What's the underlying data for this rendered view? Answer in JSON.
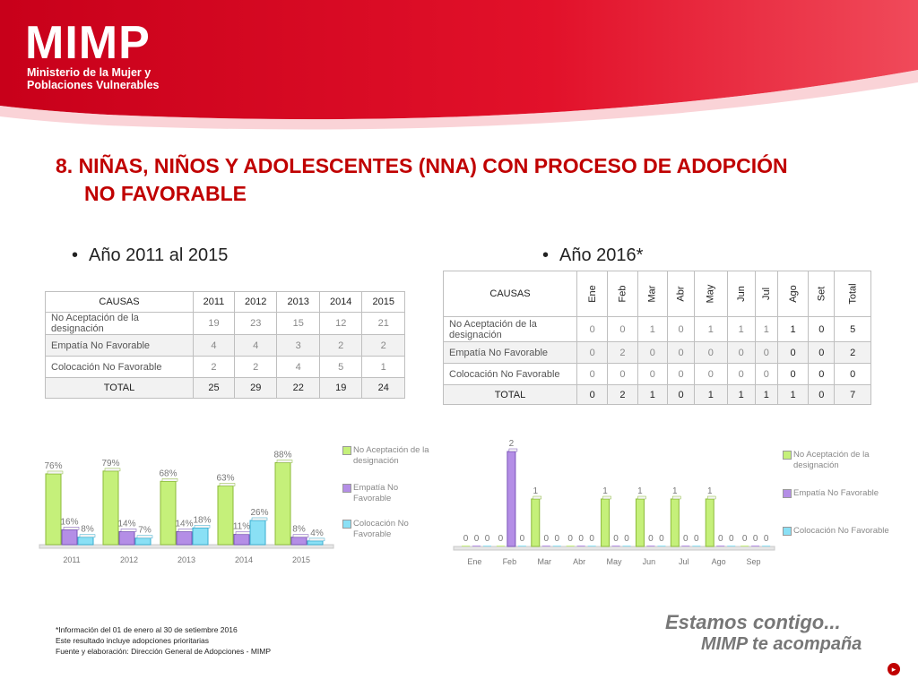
{
  "colors": {
    "red": "#d0021b",
    "title": "#c00000",
    "green": "#c5f07a",
    "purple": "#b48ee6",
    "cyan": "#8ae0f5"
  },
  "logo": {
    "name": "MIMP",
    "line1": "Ministerio de la Mujer y",
    "line2": "Poblaciones Vulnerables"
  },
  "title": {
    "line1": "8. NIÑAS, NIÑOS Y ADOLESCENTES (NNA) CON PROCESO DE ADOPCIÓN",
    "line2": "NO FAVORABLE"
  },
  "left": {
    "bullet": "Año 2011 al 2015",
    "table": {
      "headers": [
        "CAUSAS",
        "2011",
        "2012",
        "2013",
        "2014",
        "2015"
      ],
      "rows": [
        [
          "No Aceptación de la designación",
          "19",
          "23",
          "15",
          "12",
          "21"
        ],
        [
          "Empatía No Favorable",
          "4",
          "4",
          "3",
          "2",
          "2"
        ],
        [
          "Colocación No Favorable",
          "2",
          "2",
          "4",
          "5",
          "1"
        ]
      ],
      "total": [
        "TOTAL",
        "25",
        "29",
        "22",
        "19",
        "24"
      ]
    }
  },
  "right": {
    "bullet": "Año 2016*",
    "table": {
      "headers": [
        "CAUSAS",
        "Ene",
        "Feb",
        "Mar",
        "Abr",
        "May",
        "Jun",
        "Jul",
        "Ago",
        "Set",
        "Total"
      ],
      "rows": [
        [
          "No Aceptación de la designación",
          "0",
          "0",
          "1",
          "0",
          "1",
          "1",
          "1",
          "1",
          "0",
          "5"
        ],
        [
          "Empatía No Favorable",
          "0",
          "2",
          "0",
          "0",
          "0",
          "0",
          "0",
          "0",
          "0",
          "2"
        ],
        [
          "Colocación No Favorable",
          "0",
          "0",
          "0",
          "0",
          "0",
          "0",
          "0",
          "0",
          "0",
          "0"
        ]
      ],
      "total": [
        "TOTAL",
        "0",
        "2",
        "1",
        "0",
        "1",
        "1",
        "1",
        "1",
        "0",
        "7"
      ]
    }
  },
  "chart_data": [
    {
      "type": "bar",
      "categories": [
        "2011",
        "2012",
        "2013",
        "2014",
        "2015"
      ],
      "ylim": [
        0,
        100
      ],
      "series": [
        {
          "name": "No Aceptación de la designación",
          "values": [
            76,
            79,
            68,
            63,
            88
          ],
          "labels": [
            "76%",
            "79%",
            "68%",
            "63%",
            "88%"
          ]
        },
        {
          "name": "Empatía No Favorable",
          "values": [
            16,
            14,
            14,
            11,
            8
          ],
          "labels": [
            "16%",
            "14%",
            "14%",
            "11%",
            "8%"
          ]
        },
        {
          "name": "Colocación No Favorable",
          "values": [
            8,
            7,
            18,
            26,
            4
          ],
          "labels": [
            "8%",
            "7%",
            "18%",
            "26%",
            "4%"
          ]
        }
      ]
    },
    {
      "type": "bar",
      "categories": [
        "Ene",
        "Feb",
        "Mar",
        "Abr",
        "May",
        "Jun",
        "Jul",
        "Ago",
        "Sep"
      ],
      "ylim": [
        0,
        2
      ],
      "series": [
        {
          "name": "No Aceptación de la designación",
          "values": [
            0,
            0,
            1,
            0,
            1,
            1,
            1,
            1,
            0
          ],
          "labels": [
            "0",
            "0",
            "1",
            "0",
            "1",
            "1",
            "1",
            "1",
            "0"
          ]
        },
        {
          "name": "Empatía No Favorable",
          "values": [
            0,
            2,
            0,
            0,
            0,
            0,
            0,
            0,
            0
          ],
          "labels": [
            "0",
            "2",
            "0",
            "0",
            "0",
            "0",
            "0",
            "0",
            "0"
          ]
        },
        {
          "name": "Colocación No Favorable",
          "values": [
            0,
            0,
            0,
            0,
            0,
            0,
            0,
            0,
            0
          ],
          "labels": [
            "0",
            "0",
            "0",
            "0",
            "0",
            "0",
            "0",
            "0",
            "0"
          ]
        }
      ]
    }
  ],
  "legend1": [
    "No Aceptación de la designación",
    "Empatía No Favorable",
    "Colocación No Favorable"
  ],
  "legend2": [
    "No Aceptación de la designación",
    "Empatía No Favorable",
    "Colocación No Favorable"
  ],
  "notes": {
    "line1": "*Información del  01 de enero al 30 de setiembre 2016",
    "line2": "Este resultado incluye adopciones prioritarias",
    "line3": "Fuente y elaboración: Dirección General de Adopciones - MIMP"
  },
  "slogan": {
    "line1": "Estamos contigo...",
    "line2": "MIMP te acompaña"
  }
}
